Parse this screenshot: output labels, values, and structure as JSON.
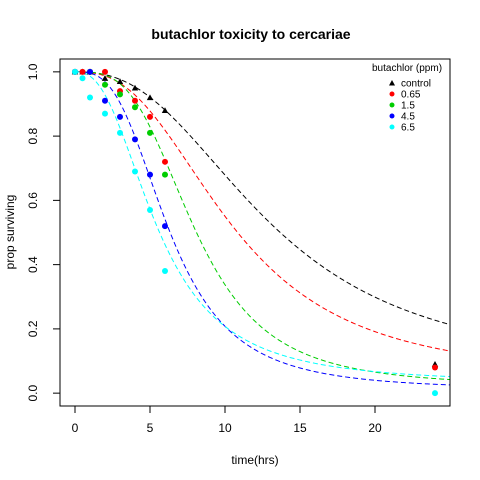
{
  "chart_data": {
    "type": "scatter",
    "title": "butachlor toxicity to cercariae",
    "xlabel": "time(hrs)",
    "ylabel": "prop surviving",
    "xlim": [
      -1,
      25
    ],
    "ylim": [
      -0.04,
      1.04
    ],
    "xticks": [
      0,
      5,
      10,
      15,
      20
    ],
    "yticks": [
      0.0,
      0.2,
      0.4,
      0.6,
      0.8,
      1.0
    ],
    "xtick_labels": [
      "0",
      "5",
      "10",
      "15",
      "20"
    ],
    "ytick_labels": [
      "0.0",
      "0.2",
      "0.4",
      "0.6",
      "0.8",
      "1.0"
    ],
    "legend": {
      "title": "butachlor (ppm)",
      "position": "top-right"
    },
    "series": [
      {
        "name": "control",
        "color": "#000000",
        "marker": "triangle",
        "x": [
          0,
          0.5,
          1,
          2,
          3,
          4,
          5,
          6,
          24
        ],
        "y": [
          1.0,
          1.0,
          1.0,
          0.98,
          0.97,
          0.95,
          0.92,
          0.88,
          0.09
        ],
        "fit": {
          "t50": 13.0,
          "slope": 2.5,
          "lower": 0.06,
          "upper": 1.0
        }
      },
      {
        "name": "0.65",
        "color": "#ff0000",
        "marker": "circle",
        "x": [
          0,
          0.5,
          1,
          2,
          3,
          4,
          5,
          6,
          24
        ],
        "y": [
          1.0,
          1.0,
          1.0,
          1.0,
          0.94,
          0.91,
          0.86,
          0.72,
          0.08
        ],
        "fit": {
          "t50": 10.5,
          "slope": 2.6,
          "lower": 0.04,
          "upper": 1.0
        }
      },
      {
        "name": "1.5",
        "color": "#00cd00",
        "marker": "circle",
        "x": [
          0,
          1,
          2,
          3,
          4,
          5,
          6
        ],
        "y": [
          1.0,
          1.0,
          0.96,
          0.93,
          0.89,
          0.81,
          0.68
        ],
        "fit": {
          "t50": 8.0,
          "slope": 3.3,
          "lower": 0.02,
          "upper": 1.0
        }
      },
      {
        "name": "4.5",
        "color": "#0000ff",
        "marker": "circle",
        "x": [
          0,
          1,
          2,
          3,
          4,
          5,
          6
        ],
        "y": [
          1.0,
          1.0,
          0.91,
          0.86,
          0.79,
          0.68,
          0.52
        ],
        "fit": {
          "t50": 6.3,
          "slope": 3.0,
          "lower": 0.01,
          "upper": 1.0
        }
      },
      {
        "name": "6.5",
        "color": "#00ffff",
        "marker": "circle",
        "x": [
          0,
          0.5,
          1,
          2,
          3,
          4,
          5,
          6,
          24
        ],
        "y": [
          1.0,
          0.98,
          0.92,
          0.87,
          0.81,
          0.69,
          0.57,
          0.38,
          0.0
        ],
        "fit": {
          "t50": 5.5,
          "slope": 2.5,
          "lower": 0.03,
          "upper": 1.0
        }
      }
    ]
  }
}
